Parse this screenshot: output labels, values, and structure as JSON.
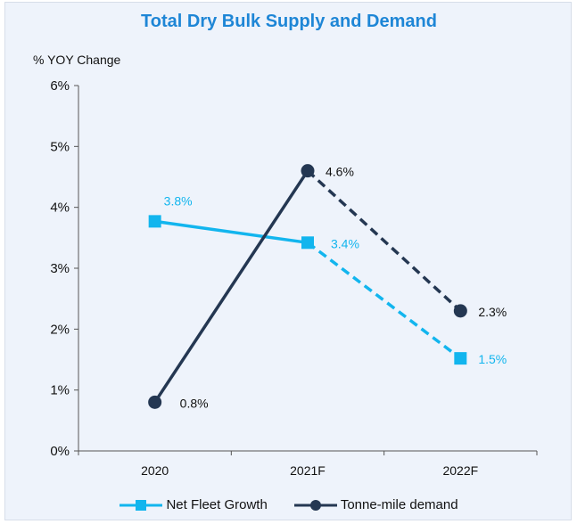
{
  "chart_data": {
    "type": "line",
    "title": "Total Dry Bulk Supply and Demand",
    "xlabel": "",
    "ylabel": "% YOY Change",
    "categories": [
      "2020",
      "2021F",
      "2022F"
    ],
    "ylim": [
      0,
      6
    ],
    "yticks": [
      0,
      1,
      2,
      3,
      4,
      5,
      6
    ],
    "ytick_labels": [
      "0%",
      "1%",
      "2%",
      "3%",
      "4%",
      "5%",
      "6%"
    ],
    "series": [
      {
        "name": "Net Fleet Growth",
        "values": [
          3.77,
          3.42,
          1.52
        ],
        "labels": [
          "3.8%",
          "3.4%",
          "1.5%"
        ],
        "color": "#12b5ee",
        "marker": "square",
        "dashed_from_index": 1
      },
      {
        "name": "Tonne-mile demand",
        "values": [
          0.8,
          4.6,
          2.3
        ],
        "labels": [
          "0.8%",
          "4.6%",
          "2.3%"
        ],
        "color": "#243752",
        "marker": "circle",
        "dashed_from_index": 1
      }
    ],
    "legend_position": "bottom",
    "grid": false
  }
}
